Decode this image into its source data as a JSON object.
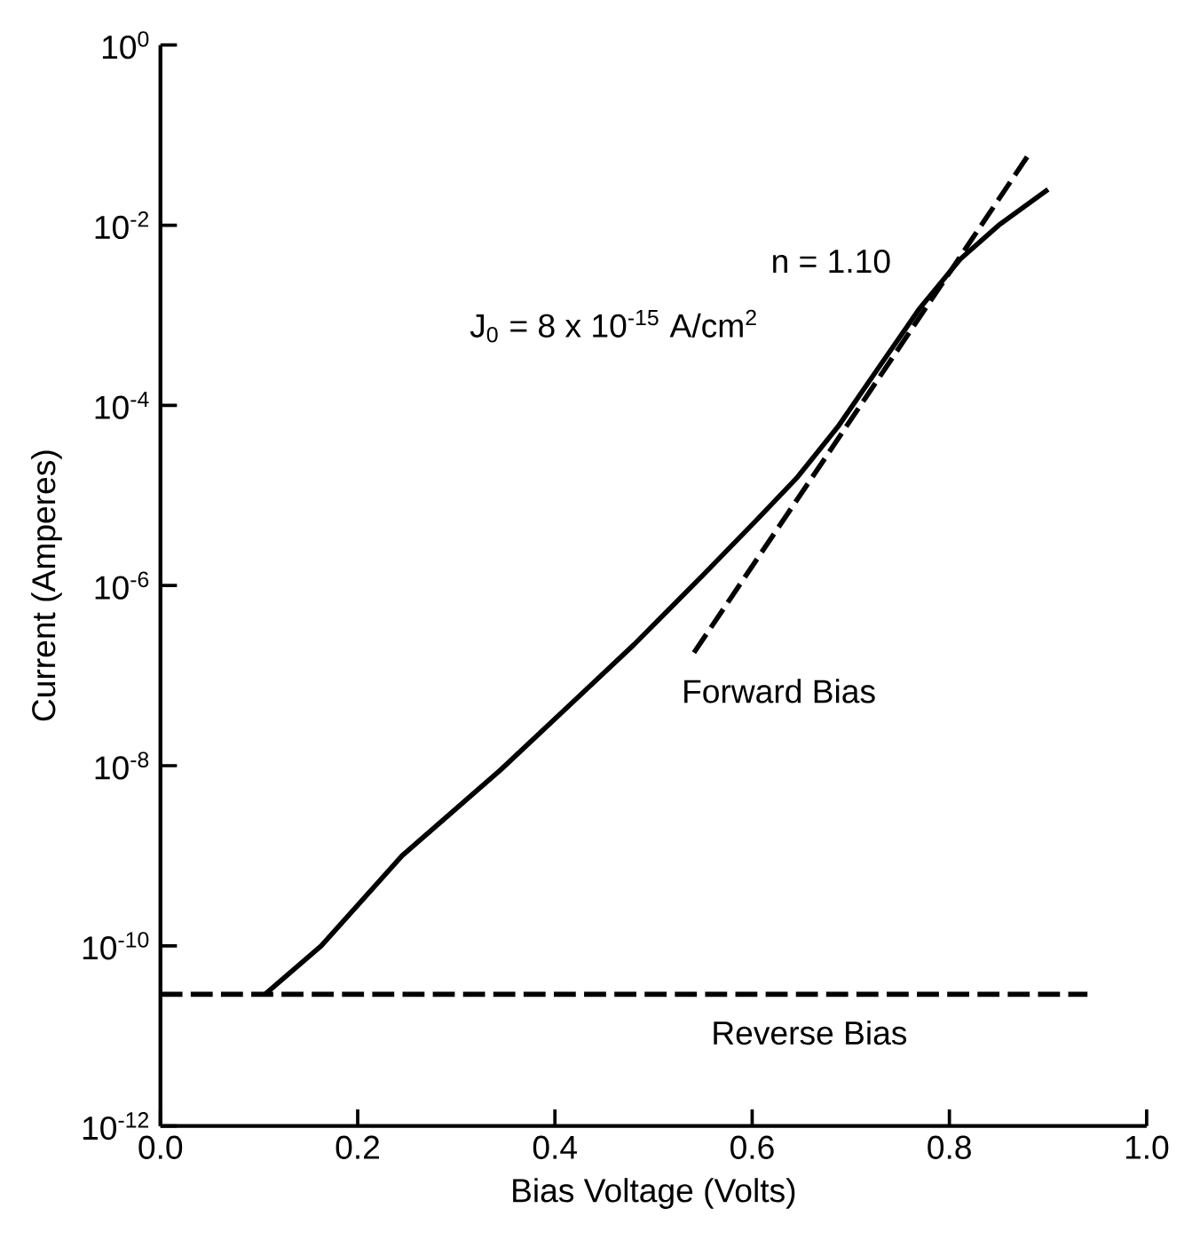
{
  "chart_data": {
    "type": "line",
    "xlabel": "Bias Voltage (Volts)",
    "ylabel": "Current (Amperes)",
    "log": "y",
    "xlim": [
      0,
      1
    ],
    "ylim": [
      1e-12,
      1
    ],
    "xticks": [
      {
        "value": 0,
        "label": "0.0"
      },
      {
        "value": 0.2,
        "label": "0.2"
      },
      {
        "value": 0.4,
        "label": "0.4"
      },
      {
        "value": 0.6,
        "label": "0.6"
      },
      {
        "value": 0.8,
        "label": "0.8"
      },
      {
        "value": 1,
        "label": "1.0"
      }
    ],
    "yticks": [
      {
        "value": 1,
        "label": "10$^{0}$"
      },
      {
        "value": 0.01,
        "label": "10$^{-2}$"
      },
      {
        "value": 0.0001,
        "label": "10$^{-4}$"
      },
      {
        "value": 1e-06,
        "label": "10$^{-6}$"
      },
      {
        "value": 1e-08,
        "label": "10$^{-8}$"
      },
      {
        "value": 1e-10,
        "label": "10$^{-10}$"
      },
      {
        "value": 1e-12,
        "label": "10$^{-12}$"
      }
    ],
    "grid": false,
    "marker": "none",
    "series": [
      {
        "color": "#000000",
        "line_style": "solid",
        "x": [
          0.106,
          0.163,
          0.245,
          0.345,
          0.414,
          0.48,
          0.55,
          0.605,
          0.646,
          0.687,
          0.728,
          0.77,
          0.811,
          0.85,
          0.9
        ],
        "values": [
          2.9e-11,
          1e-10,
          1e-09,
          9e-09,
          4.6e-08,
          2.2e-07,
          1.3e-06,
          5.4e-06,
          1.6e-05,
          5.8e-05,
          0.00026,
          0.0012,
          0.0042,
          0.01,
          0.025
        ]
      },
      {
        "name": "Forward Bias",
        "color": "#000000",
        "line_style": "dashed",
        "x": [
          0.541,
          0.674,
          0.88
        ],
        "values": [
          1.8e-07,
          2.6e-05,
          0.06
        ]
      },
      {
        "name": "Reverse Bias",
        "color": "#000000",
        "line_style": "dashed",
        "x": [
          0,
          0.94
        ],
        "values": [
          2.9e-11,
          2.9e-11
        ]
      }
    ],
    "annotations": [
      "n = 1.10",
      "J$_{0}$ = 8 x 10$^{-15}$ A/cm$^{2}$"
    ]
  }
}
